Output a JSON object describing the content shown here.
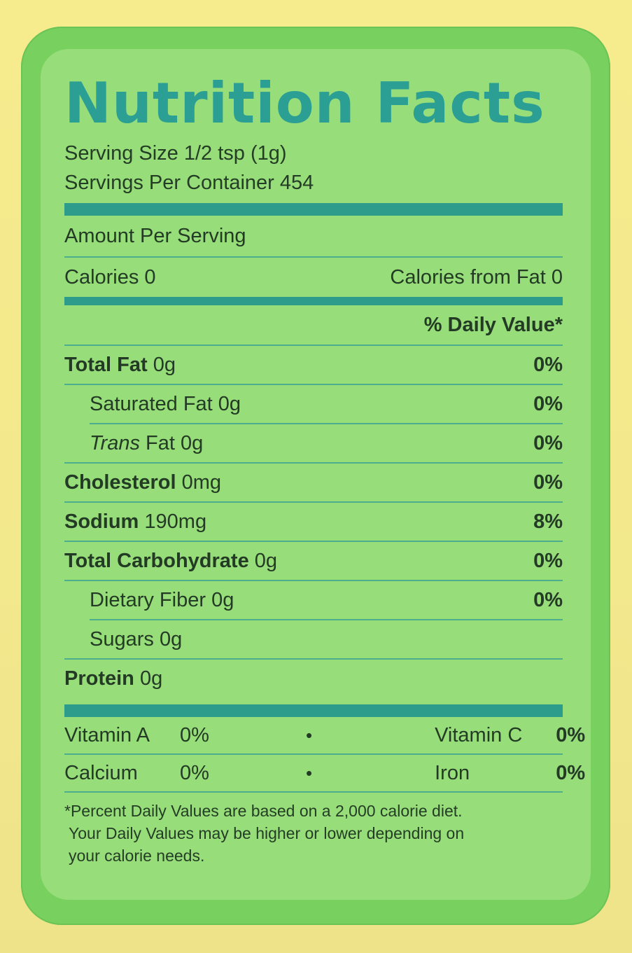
{
  "title": "Nutrition Facts",
  "serving_size": "Serving Size 1/2 tsp (1g)",
  "servings_per_container": "Servings Per Container 454",
  "amount_per_serving": "Amount Per Serving",
  "calories": "Calories 0",
  "calories_from_fat": "Calories from Fat 0",
  "daily_value_header": "% Daily Value*",
  "nutrients": [
    {
      "name": "Total Fat",
      "amount": "0g",
      "dv": "0%"
    },
    {
      "name": "Saturated Fat",
      "amount": "0g",
      "dv": "0%"
    },
    {
      "name": "Trans",
      "suffix": "Fat",
      "amount": "0g",
      "dv": "0%"
    },
    {
      "name": "Cholesterol",
      "amount": "0mg",
      "dv": "0%"
    },
    {
      "name": "Sodium",
      "amount": "190mg",
      "dv": "8%"
    },
    {
      "name": "Total Carbohydrate",
      "amount": "0g",
      "dv": "0%"
    },
    {
      "name": "Dietary Fiber",
      "amount": "0g",
      "dv": "0%"
    },
    {
      "name": "Sugars",
      "amount": "0g"
    },
    {
      "name": "Protein",
      "amount": "0g"
    }
  ],
  "vitamins": [
    {
      "left_name": "Vitamin A",
      "left_pct": "0%",
      "right_name": "Vitamin C",
      "right_pct": "0%"
    },
    {
      "left_name": "Calcium",
      "left_pct": "0%",
      "right_name": "Iron",
      "right_pct": "0%"
    }
  ],
  "bullet": "•",
  "footnote": [
    "*Percent Daily Values are based on a 2,000 calorie diet.",
    "Your Daily Values may be higher or lower depending on",
    "your calorie needs."
  ],
  "colors": {
    "panel": "#78d05e",
    "inner": "#97dd7a",
    "title": "#2b9f94",
    "rule": "#2d9c8b",
    "background": "#f3e98c"
  }
}
